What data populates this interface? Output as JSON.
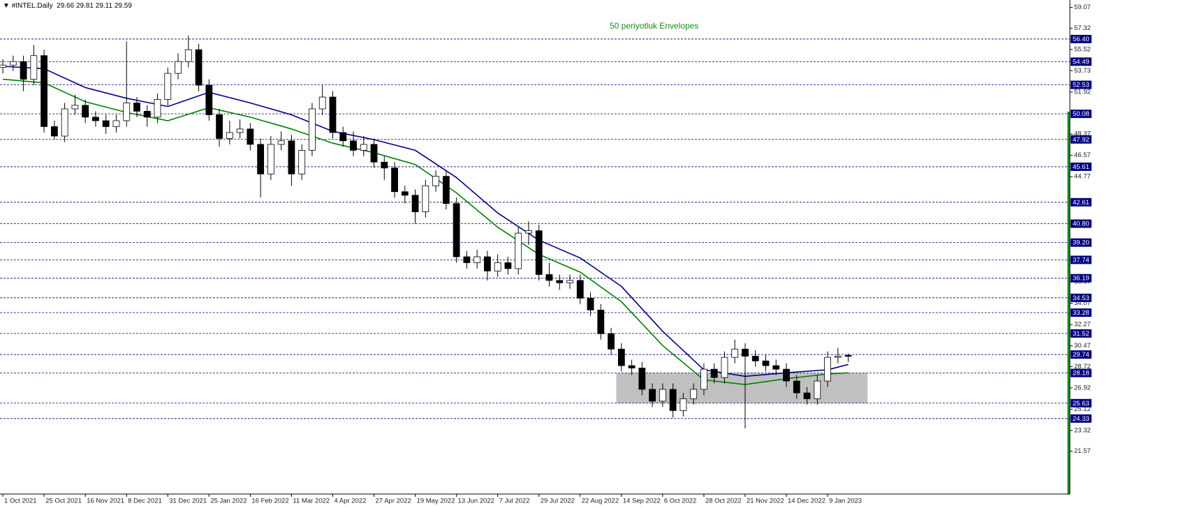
{
  "header": {
    "symbol": "#INTEL.Daily"
  },
  "chart_data": {
    "type": "candlestick",
    "annotation": "50 periyotluk Envelopes",
    "xlim": [
      -1.1,
      414
    ],
    "ylim": [
      17.95,
      59.7
    ],
    "xticks": [
      {
        "value": 0,
        "label": "1 Oct 2021"
      },
      {
        "value": 16,
        "label": "25 Oct 2021"
      },
      {
        "value": 32,
        "label": "16 Nov 2021"
      },
      {
        "value": 48,
        "label": "8 Dec 2021"
      },
      {
        "value": 64,
        "label": "31 Dec 2021"
      },
      {
        "value": 80,
        "label": "25 Jan 2022"
      },
      {
        "value": 96,
        "label": "16 Feb 2022"
      },
      {
        "value": 112,
        "label": "11 Mar 2022"
      },
      {
        "value": 128,
        "label": "4 Apr 2022"
      },
      {
        "value": 144,
        "label": "27 Apr 2022"
      },
      {
        "value": 160,
        "label": "19 May 2022"
      },
      {
        "value": 176,
        "label": "13 Jun 2022"
      },
      {
        "value": 192,
        "label": "7 Jul 2022"
      },
      {
        "value": 208,
        "label": "29 Jul 2022"
      },
      {
        "value": 224,
        "label": "22 Aug 2022"
      },
      {
        "value": 240,
        "label": "14 Sep 2022"
      },
      {
        "value": 256,
        "label": "6 Oct 2022"
      },
      {
        "value": 272,
        "label": "28 Oct 2022"
      },
      {
        "value": 288,
        "label": "21 Nov 2022"
      },
      {
        "value": 304,
        "label": "14 Dec 2022"
      },
      {
        "value": 320,
        "label": "9 Jan 2023"
      }
    ],
    "yticks": [
      59.07,
      57.32,
      55.52,
      53.73,
      51.92,
      48.37,
      46.57,
      44.77,
      35.87,
      34.07,
      32.27,
      30.47,
      28.72,
      26.92,
      25.12,
      23.32,
      21.57
    ],
    "levels": [
      {
        "value": 56.4,
        "label": "56.40"
      },
      54.49,
      52.53,
      50.08,
      47.92,
      45.61,
      42.61,
      {
        "value": 40.8,
        "label": "40.80"
      },
      {
        "value": 39.2,
        "label": "39.20"
      },
      37.74,
      36.19,
      34.53,
      33.28,
      31.52,
      29.74,
      28.18,
      25.63,
      24.33
    ],
    "level_color": "#000080",
    "zone": {
      "x": [
        238,
        335.5
      ],
      "y": [
        25.63,
        28.18
      ],
      "color": "#c0c0c0"
    },
    "x": [
      0,
      4,
      8,
      12,
      16,
      20,
      24,
      28,
      32,
      36,
      40,
      44,
      48,
      52,
      56,
      60,
      64,
      68,
      72,
      76,
      80,
      84,
      88,
      92,
      96,
      100,
      104,
      108,
      112,
      116,
      120,
      124,
      128,
      132,
      136,
      140,
      144,
      148,
      152,
      156,
      160,
      164,
      168,
      172,
      176,
      180,
      184,
      188,
      192,
      196,
      200,
      204,
      208,
      212,
      216,
      220,
      224,
      228,
      232,
      236,
      240,
      244,
      248,
      252,
      256,
      260,
      264,
      268,
      272,
      276,
      280,
      284,
      288,
      292,
      296,
      300,
      304,
      308,
      312,
      316,
      320,
      324,
      328
    ],
    "open": [
      54.0,
      54.2,
      54.5,
      53.0,
      55.0,
      49.0,
      48.2,
      50.5,
      50.8,
      49.8,
      49.5,
      49.0,
      49.5,
      51.0,
      50.3,
      49.8,
      51.3,
      53.5,
      54.5,
      55.5,
      52.5,
      50.0,
      48.0,
      48.5,
      48.8,
      47.5,
      45.0,
      47.5,
      47.8,
      45.0,
      47.0,
      50.5,
      51.5,
      48.5,
      47.8,
      47.0,
      47.5,
      46.0,
      45.5,
      43.5,
      43.2,
      41.8,
      44.0,
      44.8,
      42.5,
      38.0,
      37.5,
      38.0,
      36.8,
      37.5,
      37.0,
      40.0,
      40.2,
      36.5,
      36.0,
      35.8,
      36.0,
      34.5,
      33.5,
      31.5,
      30.2,
      28.8,
      28.6,
      26.8,
      25.8,
      26.8,
      25.0,
      26.0,
      26.8,
      28.5,
      27.8,
      29.5,
      30.2,
      29.6,
      29.2,
      28.8,
      28.5,
      27.5,
      26.5,
      26.0,
      27.5,
      29.5,
      29.66
    ],
    "high": [
      54.7,
      55.0,
      55.0,
      55.9,
      55.5,
      49.5,
      51.0,
      51.7,
      51.3,
      50.3,
      50.0,
      50.0,
      56.2,
      51.5,
      50.8,
      51.8,
      54.0,
      55.2,
      56.7,
      56.0,
      53.0,
      50.5,
      49.5,
      49.6,
      49.3,
      48.0,
      48.2,
      48.6,
      48.3,
      47.5,
      51.0,
      52.5,
      52.0,
      49.0,
      48.6,
      48.2,
      48.0,
      46.5,
      46.0,
      44.0,
      43.7,
      44.5,
      45.3,
      45.3,
      43.0,
      38.5,
      38.6,
      38.5,
      38.2,
      38.0,
      40.5,
      41.0,
      40.7,
      37.5,
      36.5,
      36.5,
      36.5,
      35.0,
      34.0,
      32.0,
      30.7,
      29.3,
      29.1,
      27.3,
      27.3,
      27.3,
      26.5,
      27.3,
      29.0,
      29.0,
      30.0,
      31.0,
      30.7,
      30.1,
      29.7,
      29.3,
      29.0,
      28.0,
      27.0,
      28.0,
      30.0,
      30.3,
      29.81
    ],
    "low": [
      53.5,
      53.7,
      52.0,
      52.5,
      48.5,
      47.9,
      47.7,
      50.0,
      49.3,
      49.0,
      48.4,
      48.5,
      49.0,
      49.8,
      49.0,
      49.3,
      50.8,
      53.0,
      54.0,
      52.0,
      49.5,
      47.3,
      47.5,
      48.0,
      47.0,
      43.0,
      44.5,
      47.0,
      44.0,
      44.5,
      46.5,
      50.0,
      48.0,
      47.3,
      46.5,
      46.5,
      45.5,
      44.5,
      43.0,
      42.5,
      40.8,
      41.3,
      43.5,
      42.0,
      37.5,
      37.0,
      37.0,
      36.0,
      36.3,
      36.5,
      36.5,
      39.0,
      36.0,
      35.5,
      35.2,
      35.3,
      34.0,
      33.0,
      31.0,
      29.7,
      28.3,
      28.0,
      26.3,
      25.3,
      25.3,
      24.4,
      24.5,
      25.5,
      26.3,
      27.3,
      27.3,
      29.0,
      23.5,
      28.7,
      28.3,
      28.0,
      27.0,
      26.0,
      25.5,
      25.5,
      27.0,
      29.0,
      29.11
    ],
    "close": [
      54.2,
      54.5,
      53.0,
      55.0,
      49.0,
      48.2,
      50.5,
      50.8,
      49.8,
      49.5,
      49.0,
      49.5,
      51.0,
      50.3,
      49.8,
      51.3,
      53.5,
      54.5,
      55.5,
      52.5,
      50.0,
      48.0,
      48.5,
      48.8,
      47.5,
      45.0,
      47.5,
      47.8,
      45.0,
      47.0,
      50.5,
      51.5,
      48.5,
      47.8,
      47.0,
      47.5,
      46.0,
      45.5,
      43.5,
      43.2,
      41.8,
      44.0,
      44.8,
      42.5,
      38.0,
      37.5,
      38.0,
      36.8,
      37.5,
      37.0,
      40.0,
      40.2,
      36.5,
      36.0,
      35.8,
      36.0,
      34.5,
      33.5,
      31.5,
      30.2,
      28.8,
      28.6,
      26.8,
      25.8,
      26.8,
      25.0,
      26.0,
      26.8,
      28.5,
      27.8,
      29.5,
      30.2,
      29.6,
      29.2,
      28.8,
      28.5,
      27.5,
      26.5,
      26.0,
      27.5,
      29.5,
      29.6,
      29.59
    ],
    "lines": [
      {
        "color": "#00008b",
        "x": [
          0,
          16,
          32,
          48,
          64,
          80,
          96,
          112,
          128,
          144,
          160,
          176,
          192,
          208,
          224,
          240,
          256,
          272,
          288,
          304,
          320,
          328
        ],
        "values": [
          54.1,
          53.9,
          52.3,
          51.4,
          50.7,
          51.9,
          51.0,
          50.0,
          48.6,
          47.9,
          47.0,
          44.7,
          41.7,
          39.4,
          37.9,
          35.5,
          31.7,
          28.45,
          27.9,
          28.2,
          28.45,
          28.9
        ]
      },
      {
        "color": "#008000",
        "x": [
          0,
          16,
          32,
          48,
          64,
          80,
          96,
          112,
          128,
          144,
          160,
          176,
          192,
          208,
          224,
          240,
          256,
          272,
          288,
          304,
          320,
          328
        ],
        "values": [
          53.0,
          52.7,
          51.1,
          50.2,
          49.5,
          50.6,
          49.8,
          48.8,
          47.6,
          46.8,
          45.8,
          43.4,
          40.5,
          38.2,
          36.7,
          34.2,
          30.5,
          27.6,
          27.2,
          27.7,
          28.1,
          28.2
        ]
      }
    ]
  }
}
